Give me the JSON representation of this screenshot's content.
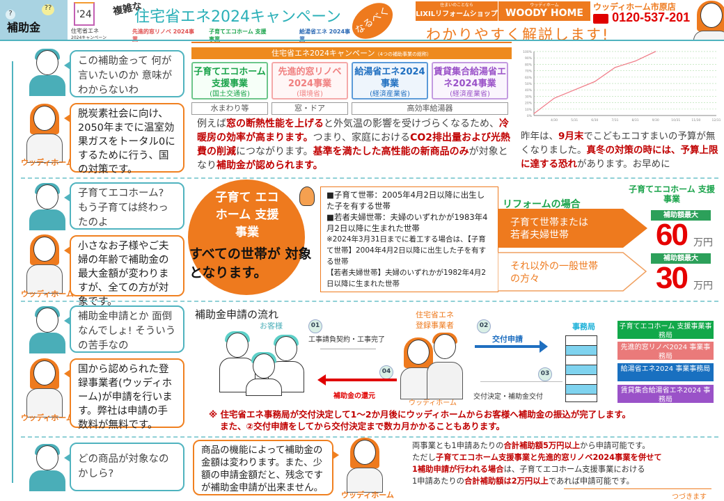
{
  "header": {
    "corner_label": "補助金",
    "campaign_badge_year": "'24",
    "campaign_badge_name": "住宅省エネ",
    "campaign_badge_sub": "2024キャンペーン",
    "prefix": "複雑な",
    "title": "住宅省エネ2024キャンペーン",
    "program_logos": [
      "先進的窓リノベ 2024事業",
      "子育てエコホーム 支援事業",
      "給湯省エネ 2024事業"
    ],
    "naru_beku": "なるべく",
    "lixil_tagline": "住まいのことなら",
    "lixil": "LIXILリフォームショップ",
    "woody_small": "ウッディホーム",
    "woody": "WOODY HOME",
    "store": "ウッディホーム市原店",
    "phone_icon": "free-dial-icon",
    "phone": "0120-537-201",
    "headline": "わかりやすく解説します!"
  },
  "speaker_label": "ウッディホーム",
  "s1": {
    "q": "この補助金って 何が言いたいのか 意味がわからないわ",
    "a": "脱炭素社会に向け、2050年までに温室効果ガスをトータル0にするために行う、国の対策です。",
    "banner": "住宅省エネ2024キャンペーン",
    "banner_sub": "（4つの補助事業の総称）",
    "programs": [
      {
        "name": "子育てエコホーム支援事業",
        "ministry": "(国土交通省)",
        "color": "#1aa34a"
      },
      {
        "name": "先進的窓リノベ2024事業",
        "ministry": "(環境省)",
        "color": "#f08080"
      },
      {
        "name": "給湯省エネ2024事業",
        "ministry": "(経済産業省)",
        "color": "#1f6fc0"
      },
      {
        "name": "賃貸集合給湯省エネ2024事業",
        "ministry": "(経済産業省)",
        "color": "#9a52c8"
      }
    ],
    "targets": [
      "水まわり等",
      "窓・ドア",
      "高効率給湯器"
    ],
    "para": [
      {
        "t": "例えば"
      },
      {
        "t": "窓の断熱性能を上げる",
        "hl": true
      },
      {
        "t": "と外気温の影響を受けづらくなるため、"
      },
      {
        "t": "冷暖房の効率が高まります。",
        "hl": true
      },
      {
        "t": "つまり、家庭における"
      },
      {
        "t": "CO2排出量および光熱費の削減",
        "hl": true
      },
      {
        "t": "につながります。"
      },
      {
        "t": "基準を満たした高性能の新商品のみ",
        "hl": true
      },
      {
        "t": "が対象となり"
      },
      {
        "t": "補助金が認められます。",
        "hl": true
      }
    ],
    "note": [
      {
        "t": "昨年は、"
      },
      {
        "t": "9月末",
        "hl": true
      },
      {
        "t": "でこどもエコすまいの予算が無くなりました。"
      },
      {
        "t": "真冬の対策の時には、予算上限に達する恐れ",
        "hl": true
      },
      {
        "t": "があります。お早めに"
      }
    ]
  },
  "chart_data": {
    "type": "line",
    "x": [
      "4/1",
      "4/30",
      "5/31",
      "6/30",
      "7/31",
      "8/31",
      "9/30"
    ],
    "values": [
      3,
      27,
      40,
      53,
      75,
      85,
      100
    ],
    "x_ticks": [
      "4/30",
      "5/31",
      "6/30",
      "7/31",
      "8/31",
      "9/30",
      "10/31",
      "11/30",
      "12/31"
    ],
    "y_ticks": [
      "0%",
      "10%",
      "20%",
      "30%",
      "40%",
      "50%",
      "60%",
      "70%",
      "80%",
      "90%",
      "100%"
    ],
    "ylim": [
      0,
      100
    ],
    "grid": true,
    "line_color": "#f07f8a"
  },
  "s2": {
    "q": "子育てエコホーム? もう子育ては終わったのよ",
    "a": "小さなお子様やご夫婦の年齢で補助金の最大金額が変わりますが、全ての方が対象です。",
    "circle_title": "子育て エコホーム 支援事業",
    "circle_sub": "すべての世帯が 対象となります。",
    "conditions": [
      "■子育て世帯：2005年4月2日以降に出生した子を有する世帯",
      "■若者夫婦世帯：夫婦のいずれかが1983年4月2日以降に生まれた世帯",
      "※2024年3月31日までに着工する場合は、【子育て世帯】2004年4月2日以降に出生した子を有する世帯",
      "【若者夫婦世帯】夫婦のいずれかが1982年4月2日以降に生まれた世帯"
    ],
    "reform_label": "リフォームの場合",
    "logo": "子育てエコホーム 支援事業",
    "tier1": "子育て世帯または 若者夫婦世帯",
    "tier2": "それ以外の一般世帯 の方々",
    "badge": "補助額最大",
    "amount1": "60",
    "amount2": "30",
    "unit": "万円"
  },
  "s3": {
    "q": "補助金申請とか 面倒なんでしょ! そういうの苦手なの",
    "a": "国から認められた登録事業者(ウッディホーム)が申請を行います。弊社は申請の手数料が無料です。",
    "title": "補助金申請の流れ",
    "customer": "お客様",
    "registrar": "住宅省エネ 登録事業者",
    "company": "ウッディホーム",
    "office": "事務局",
    "steps": [
      {
        "n": "01",
        "label": "工事請負契約・工事完了"
      },
      {
        "n": "02",
        "label": "交付申請"
      },
      {
        "n": "03",
        "label": "交付決定・補助金交付"
      },
      {
        "n": "04",
        "label": "補助金の還元"
      }
    ],
    "offices": [
      {
        "name": "子育てエコホーム 支援事業事務局",
        "color": "#12a84a"
      },
      {
        "name": "先進的窓リノベ2024 事業事務局",
        "color": "#ea7a7a"
      },
      {
        "name": "給湯省エネ2024 事業事務局",
        "color": "#1970c0"
      },
      {
        "name": "賃貸集合給湯省エネ2024 事務局",
        "color": "#9a52c8"
      }
    ],
    "note1": "※ 住宅省エネ事務局が交付決定して1～2か月後にウッディホームからお客様へ補助金の振込が完了します。",
    "note2": "また、②交付申請をしてから交付決定まで数カ月かかることもあります。"
  },
  "s4": {
    "q": "どの商品が対象なの かしら?",
    "a": "商品の機能によって補助金の金額は変わります。また、少額の申請金額だと、残念ですが補助金申請が出来ません。",
    "lines": [
      [
        {
          "t": "両事業とも1申請あたりの"
        },
        {
          "t": "合計補助額5万円以上",
          "hl": true
        },
        {
          "t": "から申請可能です。"
        }
      ],
      [
        {
          "t": "ただし"
        },
        {
          "t": "子育てエコホーム支援事業と先進的窓リノベ2024事業を併せて",
          "hl": true
        }
      ],
      [
        {
          "t": "1補助申請が行われる場合",
          "hl": true
        },
        {
          "t": "は、子育てエコホーム支援事業における"
        }
      ],
      [
        {
          "t": "1申請あたりの"
        },
        {
          "t": "合計補助額は2万円以上",
          "hl": true
        },
        {
          "t": "であれば申請可能です。"
        }
      ]
    ],
    "continued": "つづきます"
  }
}
